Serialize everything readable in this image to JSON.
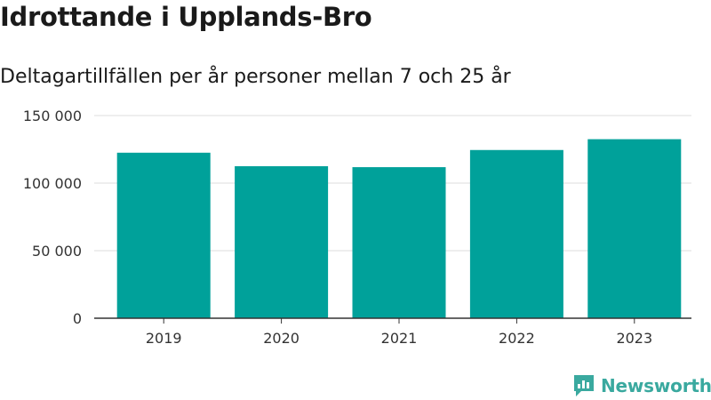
{
  "title": "Idrottande i Upplands-Bro",
  "subtitle": "Deltagartillfällen per år personer mellan 7 och 25 år",
  "brand": {
    "name": "Newsworthy",
    "icon": "newsworthy-logo-icon",
    "color": "#3aa99f"
  },
  "chart_data": {
    "type": "bar",
    "categories": [
      "2019",
      "2020",
      "2021",
      "2022",
      "2023"
    ],
    "values": [
      122500,
      112500,
      111800,
      124500,
      132500
    ],
    "ylim": [
      0,
      150000
    ],
    "yticks": [
      0,
      50000,
      100000,
      150000
    ],
    "ytick_labels": [
      "0",
      "50 000",
      "100 000",
      "150 000"
    ],
    "bar_color": "#00a19a",
    "grid": true,
    "legend": "none"
  }
}
